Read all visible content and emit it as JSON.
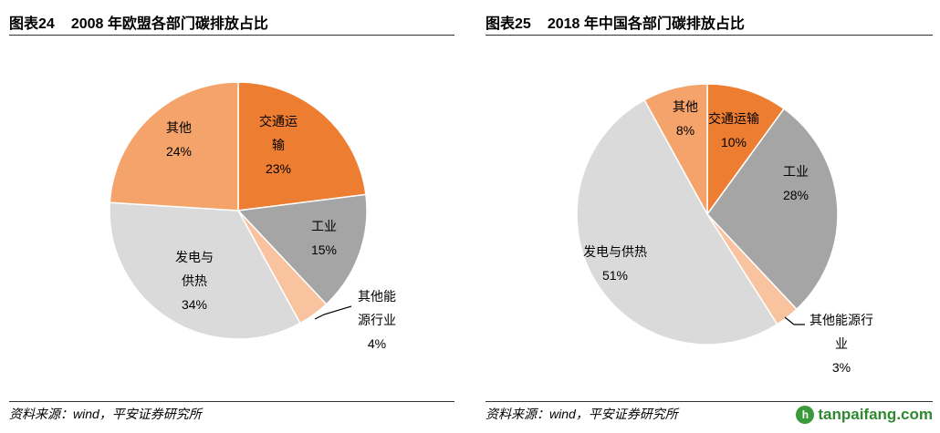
{
  "chart_data": [
    {
      "type": "pie",
      "figure_label": "图表24",
      "title": "2008 年欧盟各部门碳排放占比",
      "source": "资料来源：wind，平安证券研究所",
      "slices": [
        {
          "name": "交通运输",
          "label_lines": [
            "交通运",
            "输",
            "23%"
          ],
          "value": 23,
          "percent": "23%",
          "color": "#ED7D31"
        },
        {
          "name": "工业",
          "label_lines": [
            "工业",
            "15%"
          ],
          "value": 15,
          "percent": "15%",
          "color": "#A5A5A5"
        },
        {
          "name": "其他能源行业",
          "label_lines": [
            "其他能",
            "源行业",
            "4%"
          ],
          "value": 4,
          "percent": "4%",
          "color": "#F8C39E"
        },
        {
          "name": "发电与供热",
          "label_lines": [
            "发电与",
            "供热",
            "34%"
          ],
          "value": 34,
          "percent": "34%",
          "color": "#DADADA"
        },
        {
          "name": "其他",
          "label_lines": [
            "其他",
            "24%"
          ],
          "value": 24,
          "percent": "24%",
          "color": "#F4A36A"
        }
      ]
    },
    {
      "type": "pie",
      "figure_label": "图表25",
      "title": "2018 年中国各部门碳排放占比",
      "source": "资料来源：wind，平安证券研究所",
      "slices": [
        {
          "name": "交通运输",
          "label_lines": [
            "交通运输",
            "10%"
          ],
          "value": 10,
          "percent": "10%",
          "color": "#ED7D31"
        },
        {
          "name": "工业",
          "label_lines": [
            "工业",
            "28%"
          ],
          "value": 28,
          "percent": "28%",
          "color": "#A5A5A5"
        },
        {
          "name": "其他能源行业",
          "label_lines": [
            "其他能源行",
            "业",
            "3%"
          ],
          "value": 3,
          "percent": "3%",
          "color": "#F8C39E"
        },
        {
          "name": "发电与供热",
          "label_lines": [
            "发电与供热",
            "51%"
          ],
          "value": 51,
          "percent": "51%",
          "color": "#DADADA"
        },
        {
          "name": "其他",
          "label_lines": [
            "其他",
            "8%"
          ],
          "value": 8,
          "percent": "8%",
          "color": "#F4A36A"
        }
      ]
    }
  ],
  "watermark": {
    "logo_letter": "h",
    "text": "tanpaifang.com"
  }
}
